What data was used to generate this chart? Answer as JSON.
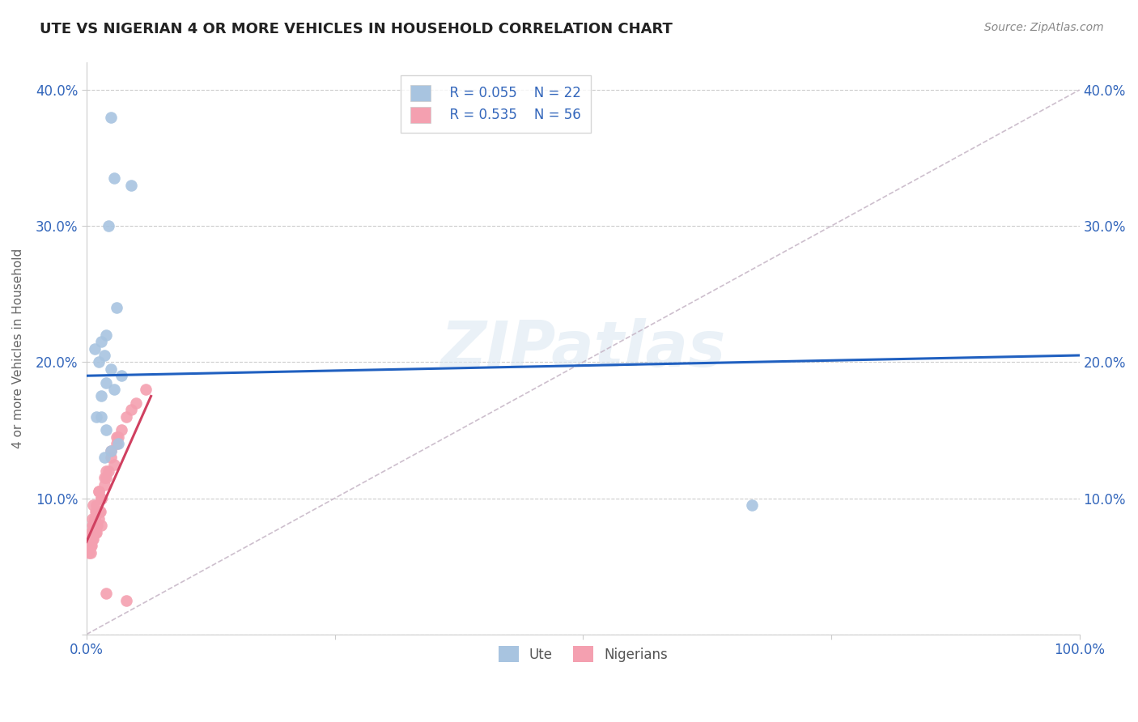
{
  "title": "UTE VS NIGERIAN 4 OR MORE VEHICLES IN HOUSEHOLD CORRELATION CHART",
  "source": "Source: ZipAtlas.com",
  "ylabel": "4 or more Vehicles in Household",
  "xlim": [
    0,
    100
  ],
  "ylim": [
    0,
    42
  ],
  "watermark": "ZIPatlas",
  "legend_r1": "R = 0.055",
  "legend_n1": "N = 22",
  "legend_r2": "R = 0.535",
  "legend_n2": "N = 56",
  "ute_color": "#a8c4e0",
  "nigerian_color": "#f4a0b0",
  "ute_line_color": "#2060c0",
  "nigerian_line_color": "#d04060",
  "diag_color": "#c8b8c8",
  "blue_label": "Ute",
  "pink_label": "Nigerians",
  "ute_x": [
    2.5,
    2.8,
    4.5,
    2.2,
    2.0,
    1.5,
    3.0,
    1.8,
    1.2,
    2.5,
    3.5,
    2.0,
    2.8,
    1.5,
    1.0,
    0.8,
    2.0,
    3.2,
    2.5,
    1.8,
    67.0,
    1.5
  ],
  "ute_y": [
    38.0,
    33.5,
    33.0,
    30.0,
    22.0,
    21.5,
    24.0,
    20.5,
    20.0,
    19.5,
    19.0,
    18.5,
    18.0,
    17.5,
    16.0,
    21.0,
    15.0,
    14.0,
    13.5,
    13.0,
    9.5,
    16.0
  ],
  "nigerian_x": [
    0.3,
    0.5,
    0.8,
    1.0,
    1.2,
    1.5,
    0.6,
    0.4,
    0.7,
    0.9,
    1.1,
    1.3,
    0.2,
    0.5,
    0.8,
    1.0,
    1.4,
    0.3,
    0.6,
    0.7,
    1.5,
    1.8,
    2.0,
    2.5,
    3.0,
    3.5,
    4.0,
    5.0,
    1.2,
    0.9,
    0.6,
    0.4,
    0.3,
    0.8,
    1.0,
    1.5,
    2.0,
    0.5,
    0.7,
    1.0,
    1.2,
    2.8,
    3.2,
    4.5,
    6.0,
    0.4,
    0.6,
    0.8,
    1.5,
    2.5,
    1.8,
    3.0,
    2.2,
    1.0,
    4.0,
    2.0
  ],
  "nigerian_y": [
    7.0,
    6.5,
    8.0,
    7.5,
    8.5,
    8.0,
    7.0,
    6.0,
    7.0,
    7.5,
    8.0,
    9.0,
    6.5,
    7.0,
    7.5,
    8.0,
    9.0,
    6.0,
    8.5,
    9.5,
    10.0,
    11.0,
    12.0,
    13.5,
    14.0,
    15.0,
    16.0,
    17.0,
    10.5,
    9.0,
    8.0,
    7.5,
    7.0,
    8.5,
    9.0,
    10.0,
    11.5,
    7.0,
    8.0,
    9.5,
    10.5,
    12.5,
    14.5,
    16.5,
    18.0,
    6.5,
    7.5,
    8.5,
    10.0,
    13.0,
    11.5,
    14.5,
    12.0,
    9.0,
    2.5,
    3.0
  ],
  "ute_trend": [
    0.0,
    100.0,
    19.0,
    20.5
  ],
  "nigerian_trend_x": [
    0.0,
    6.5
  ],
  "nigerian_trend_y": [
    6.8,
    17.5
  ]
}
